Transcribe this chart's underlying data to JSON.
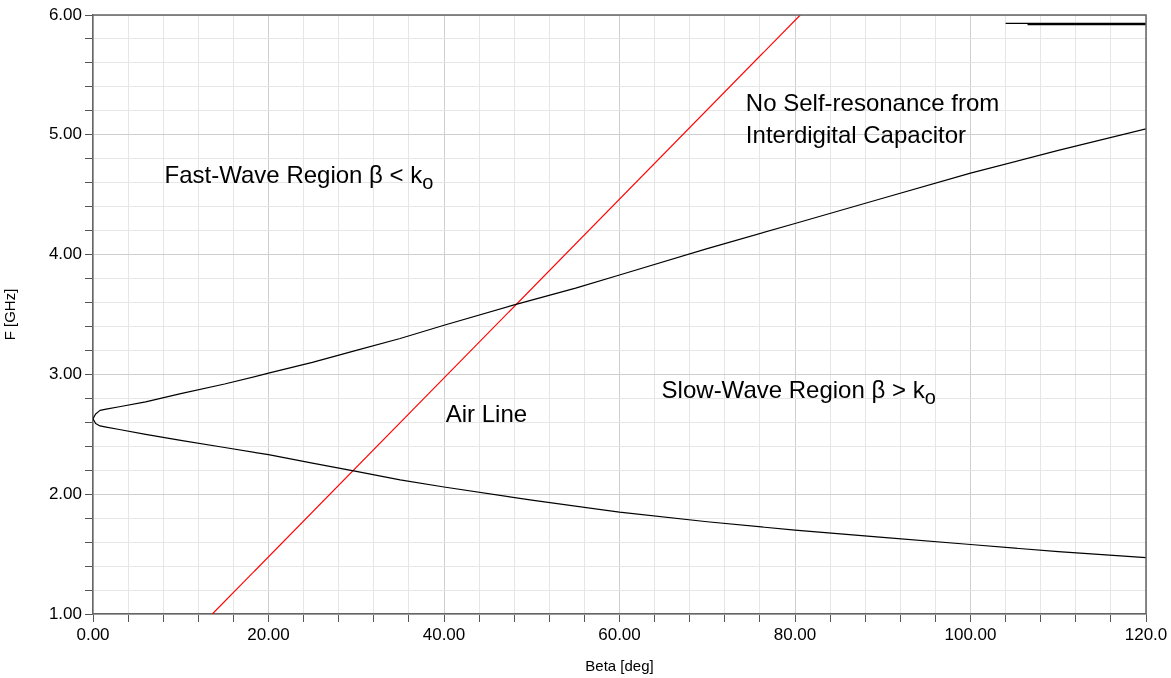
{
  "chart_data": {
    "type": "line",
    "xlabel": "Beta [deg]",
    "ylabel": "F [GHz]",
    "xlim": [
      0,
      120
    ],
    "ylim": [
      1,
      6
    ],
    "xticks": [
      {
        "value": 0,
        "label": "0.00"
      },
      {
        "value": 4,
        "label": null
      },
      {
        "value": 8,
        "label": null
      },
      {
        "value": 12,
        "label": null
      },
      {
        "value": 16,
        "label": null
      },
      {
        "value": 20,
        "label": "20.00"
      },
      {
        "value": 24,
        "label": null
      },
      {
        "value": 28,
        "label": null
      },
      {
        "value": 32,
        "label": null
      },
      {
        "value": 36,
        "label": null
      },
      {
        "value": 40,
        "label": "40.00"
      },
      {
        "value": 44,
        "label": null
      },
      {
        "value": 48,
        "label": null
      },
      {
        "value": 52,
        "label": null
      },
      {
        "value": 56,
        "label": null
      },
      {
        "value": 60,
        "label": "60.00"
      },
      {
        "value": 64,
        "label": null
      },
      {
        "value": 68,
        "label": null
      },
      {
        "value": 72,
        "label": null
      },
      {
        "value": 76,
        "label": null
      },
      {
        "value": 80,
        "label": "80.00"
      },
      {
        "value": 84,
        "label": null
      },
      {
        "value": 88,
        "label": null
      },
      {
        "value": 92,
        "label": null
      },
      {
        "value": 96,
        "label": null
      },
      {
        "value": 100,
        "label": "100.00"
      },
      {
        "value": 104,
        "label": null
      },
      {
        "value": 108,
        "label": null
      },
      {
        "value": 112,
        "label": null
      },
      {
        "value": 116,
        "label": null
      },
      {
        "value": 120,
        "label": "120.0"
      }
    ],
    "yticks": [
      {
        "value": 1,
        "label": "1.00"
      },
      {
        "value": 1.2,
        "label": null
      },
      {
        "value": 1.4,
        "label": null
      },
      {
        "value": 1.6,
        "label": null
      },
      {
        "value": 1.8,
        "label": null
      },
      {
        "value": 2,
        "label": "2.00"
      },
      {
        "value": 2.2,
        "label": null
      },
      {
        "value": 2.4,
        "label": null
      },
      {
        "value": 2.6,
        "label": null
      },
      {
        "value": 2.8,
        "label": null
      },
      {
        "value": 3,
        "label": "3.00"
      },
      {
        "value": 3.2,
        "label": null
      },
      {
        "value": 3.4,
        "label": null
      },
      {
        "value": 3.6,
        "label": null
      },
      {
        "value": 3.8,
        "label": null
      },
      {
        "value": 4,
        "label": "4.00"
      },
      {
        "value": 4.2,
        "label": null
      },
      {
        "value": 4.4,
        "label": null
      },
      {
        "value": 4.6,
        "label": null
      },
      {
        "value": 4.8,
        "label": null
      },
      {
        "value": 5,
        "label": "5.00"
      },
      {
        "value": 5.2,
        "label": null
      },
      {
        "value": 5.4,
        "label": null
      },
      {
        "value": 5.6,
        "label": null
      },
      {
        "value": 5.8,
        "label": null
      },
      {
        "value": 6,
        "label": "6.00"
      }
    ],
    "grid": true,
    "legend": false,
    "marker": "none",
    "line_style": "solid",
    "series": [
      {
        "color": "#000000",
        "x": [
          0,
          0.3,
          0.8,
          1.5,
          3,
          6,
          10,
          15,
          20,
          25,
          30,
          35,
          40,
          48,
          55,
          60,
          70,
          80,
          90,
          100,
          110,
          120
        ],
        "values": [
          2.63,
          2.67,
          2.7,
          2.71,
          2.73,
          2.77,
          2.84,
          2.92,
          3.01,
          3.1,
          3.2,
          3.3,
          3.41,
          3.58,
          3.72,
          3.83,
          4.05,
          4.26,
          4.47,
          4.68,
          4.87,
          5.05
        ]
      },
      {
        "color": "#000000",
        "x": [
          0,
          0.3,
          0.8,
          1.5,
          3,
          6,
          10,
          15,
          20,
          25,
          30,
          35,
          40,
          50,
          60,
          70,
          80,
          90,
          100,
          110,
          120
        ],
        "values": [
          2.63,
          2.59,
          2.57,
          2.56,
          2.54,
          2.5,
          2.45,
          2.39,
          2.33,
          2.26,
          2.19,
          2.12,
          2.06,
          1.95,
          1.85,
          1.77,
          1.7,
          1.64,
          1.58,
          1.52,
          1.47
        ]
      },
      {
        "color": "#ff0000",
        "x": [
          13.6,
          80.6
        ],
        "values": [
          1,
          6
        ]
      },
      {
        "color": "#000000",
        "x": [
          104,
          120
        ],
        "values": [
          5.93,
          5.93
        ]
      },
      {
        "color": "#000000",
        "x": [
          106.5,
          120
        ],
        "values": [
          5.92,
          5.92
        ]
      }
    ],
    "annotations": [
      "Fast-Wave Region β < k$_{o}$",
      "No Self-resonance from Interdigital Capacitor",
      "Air Line",
      "Slow-Wave Region β > k$_{o}$"
    ]
  }
}
